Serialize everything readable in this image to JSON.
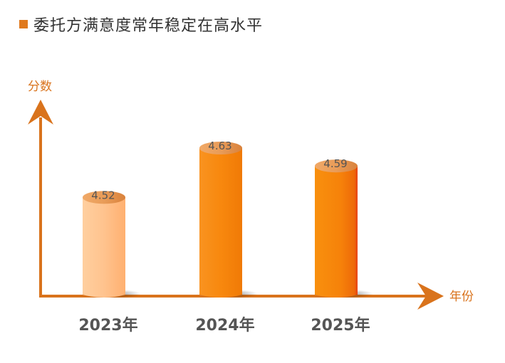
{
  "title": "委托方满意度常年稳定在高水平",
  "chart_data": {
    "type": "bar",
    "categories": [
      "2023年",
      "2024年",
      "2025年"
    ],
    "values": [
      4.52,
      4.63,
      4.59
    ],
    "data_labels": [
      "4.52",
      "4.63",
      "4.59"
    ],
    "xlabel": "年份",
    "ylabel": "分数",
    "grid": false,
    "colors": {
      "axis": "#d9731c",
      "bar_light": "#ffc38e",
      "bar": "#f7860c",
      "bar_dark_edge": "#e8450a",
      "title_marker": "#e07a1e"
    }
  }
}
